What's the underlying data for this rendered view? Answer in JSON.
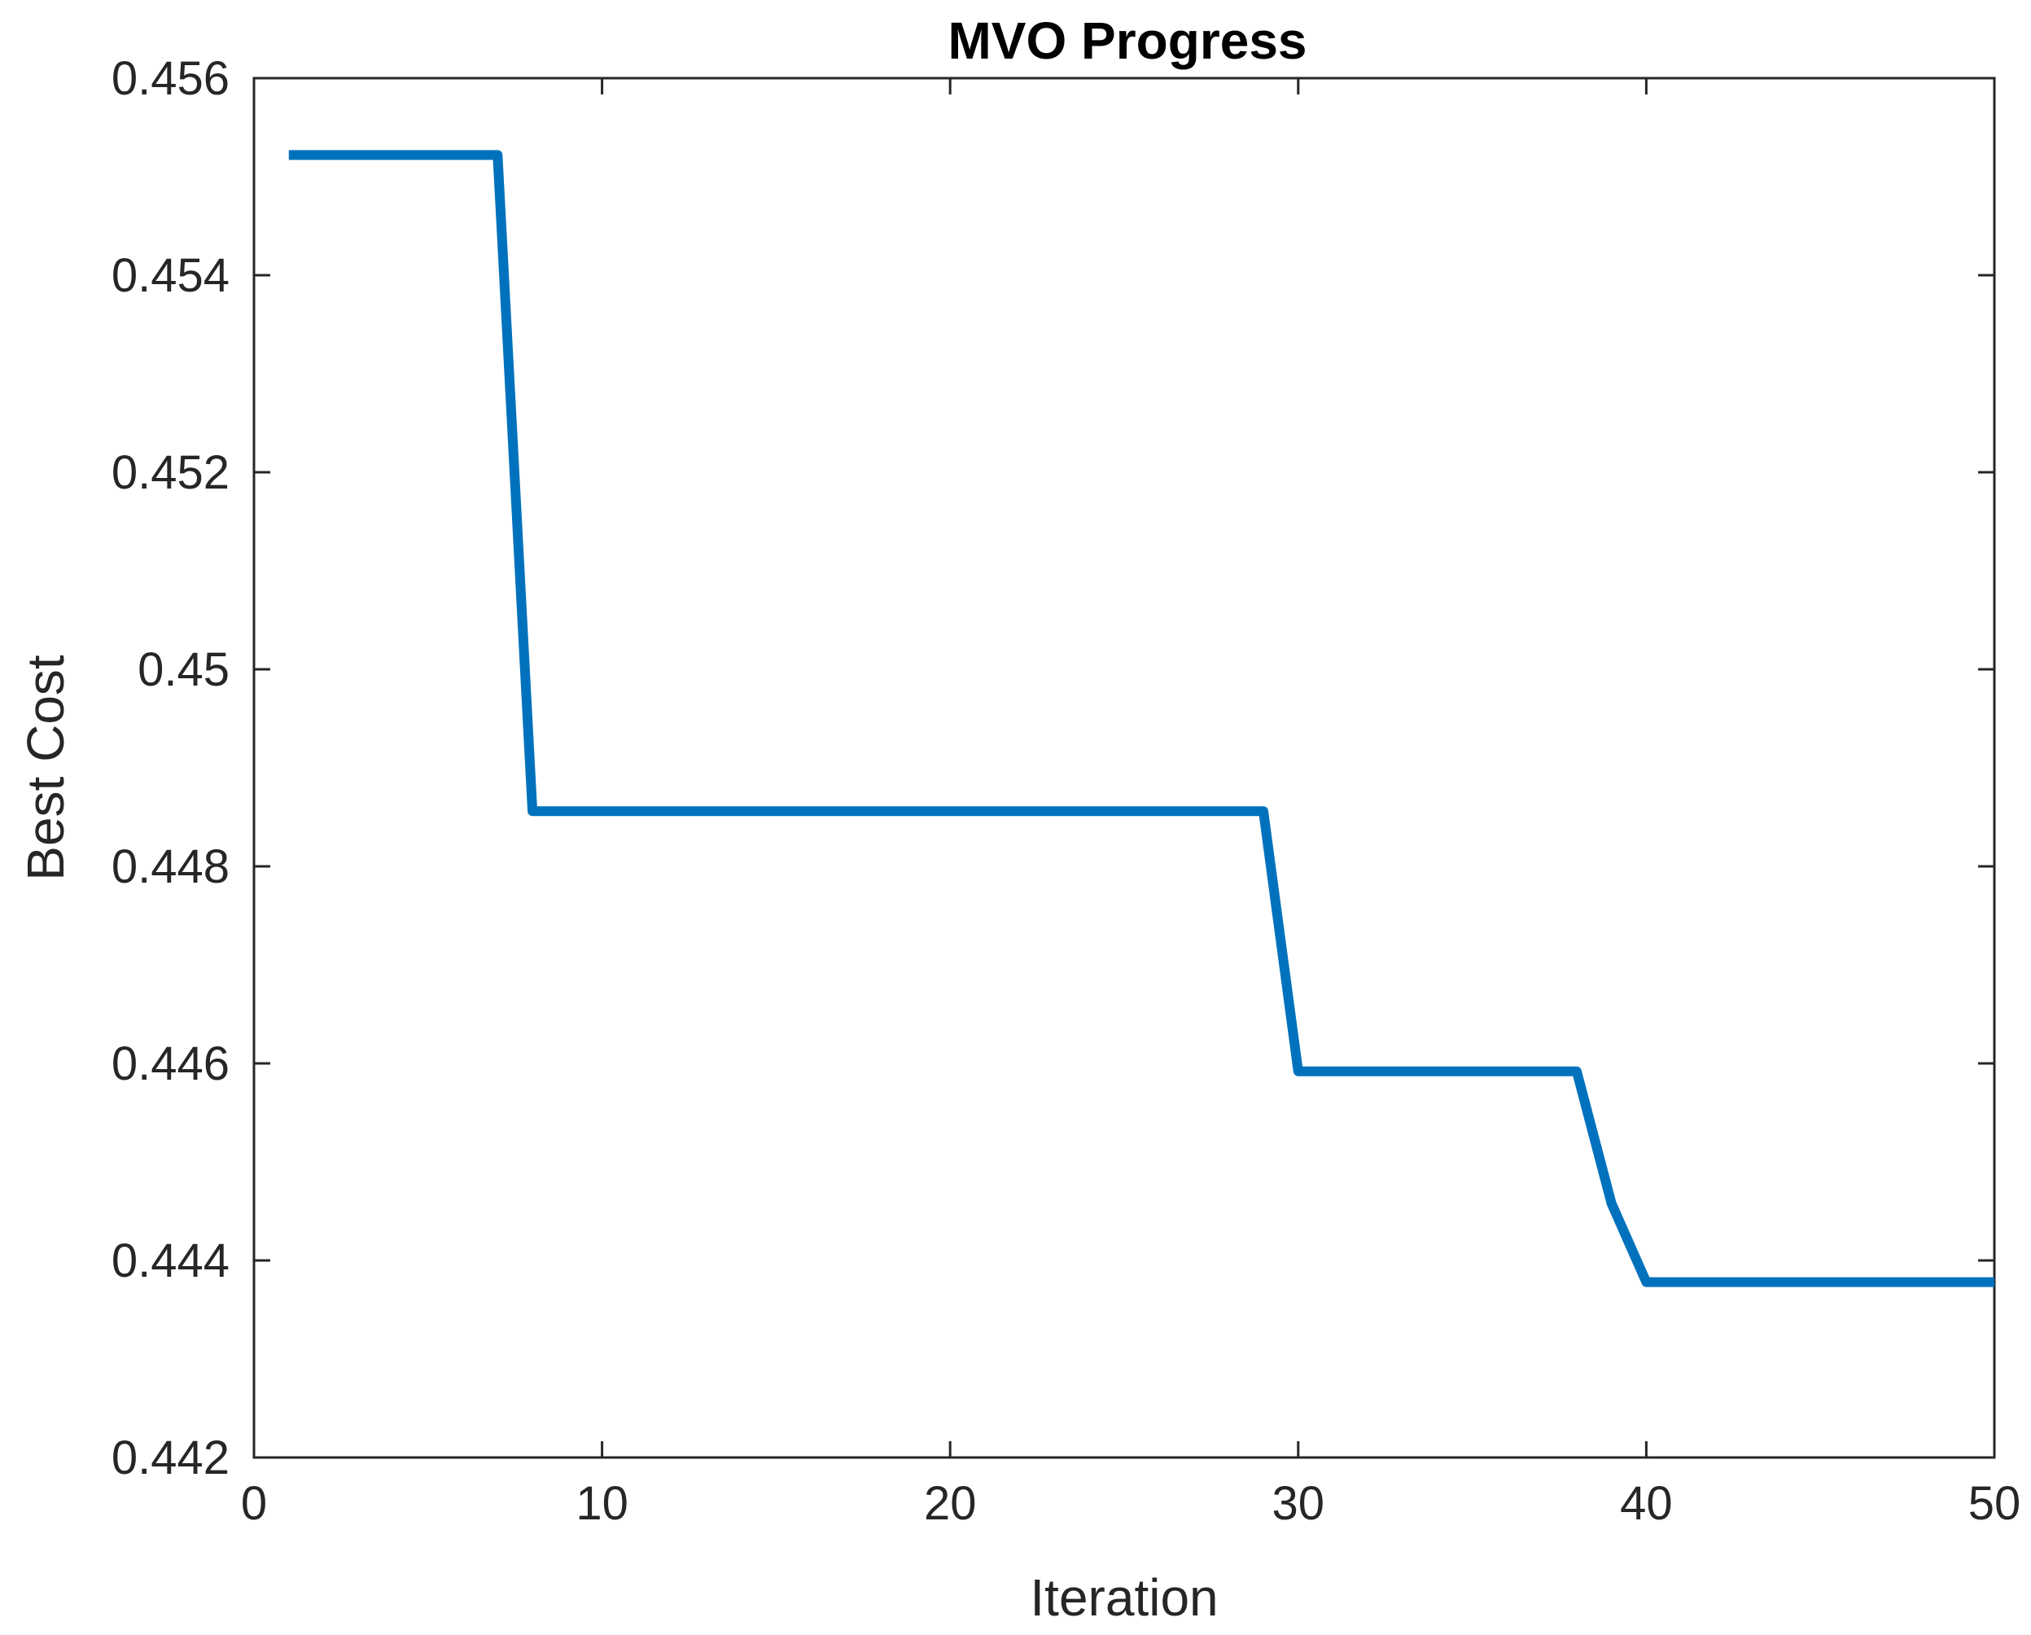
{
  "chart_data": {
    "type": "line",
    "title": "MVO Progress",
    "xlabel": "Iteration",
    "ylabel": "Best Cost",
    "xlim": [
      0,
      50
    ],
    "ylim": [
      0.442,
      0.456
    ],
    "grid": false,
    "legend": "none",
    "x_ticks": [
      "0",
      "10",
      "20",
      "30",
      "40",
      "50"
    ],
    "y_ticks": [
      "0.442",
      "0.444",
      "0.446",
      "0.448",
      "0.45",
      "0.452",
      "0.454",
      "0.456"
    ],
    "series": [
      {
        "color": "#0072BD",
        "x": [
          1,
          2,
          3,
          4,
          5,
          6,
          7,
          8,
          9,
          10,
          11,
          12,
          13,
          14,
          15,
          16,
          17,
          18,
          19,
          20,
          21,
          22,
          23,
          24,
          25,
          26,
          27,
          28,
          29,
          30,
          31,
          32,
          33,
          34,
          35,
          36,
          37,
          38,
          39,
          40,
          41,
          42,
          43,
          44,
          45,
          46,
          47,
          48,
          49,
          50
        ],
        "y": [
          0.45522,
          0.45522,
          0.45522,
          0.45522,
          0.45522,
          0.45522,
          0.45522,
          0.44856,
          0.44856,
          0.44856,
          0.44856,
          0.44856,
          0.44856,
          0.44856,
          0.44856,
          0.44856,
          0.44856,
          0.44856,
          0.44856,
          0.44856,
          0.44856,
          0.44856,
          0.44856,
          0.44856,
          0.44856,
          0.44856,
          0.44856,
          0.44856,
          0.44856,
          0.44592,
          0.44592,
          0.44592,
          0.44592,
          0.44592,
          0.44592,
          0.44592,
          0.44592,
          0.44592,
          0.44458,
          0.44378,
          0.44378,
          0.44378,
          0.44378,
          0.44378,
          0.44378,
          0.44378,
          0.44378,
          0.44378,
          0.44378,
          0.44378
        ]
      }
    ]
  }
}
